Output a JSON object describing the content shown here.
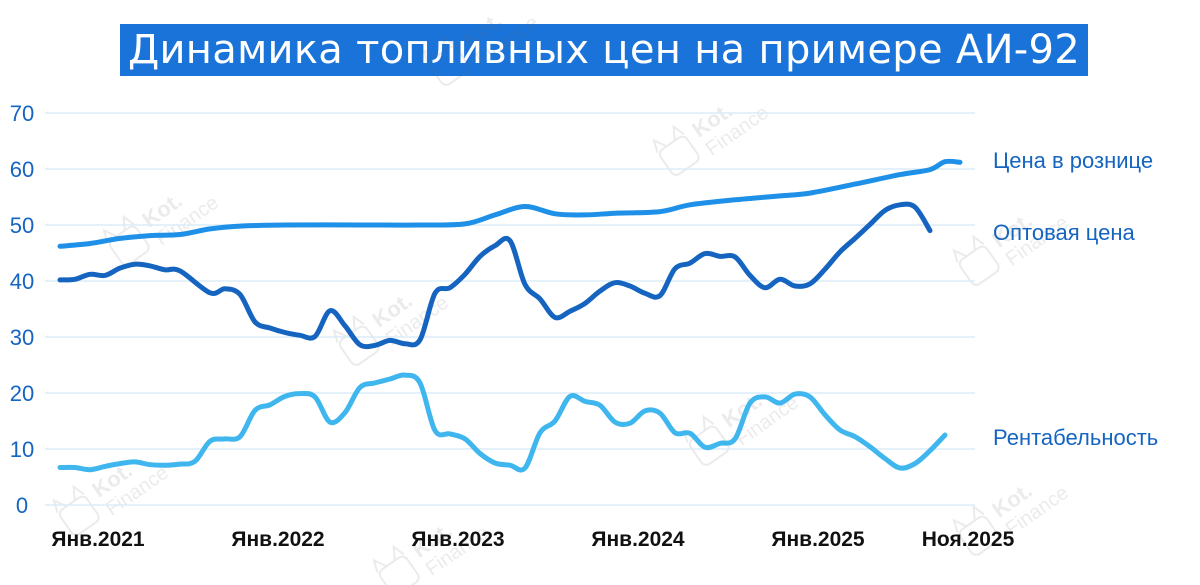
{
  "title": "Динамика топливных цен на примере АИ-92",
  "watermark": {
    "text_top": "Kot.",
    "text_bottom": "Finance",
    "icon": "cat-icon"
  },
  "colors": {
    "title_bg": "#1a73d9",
    "retail": "#1e90e8",
    "wholesale": "#1565c0",
    "margin": "#3fb6ee",
    "grid": "#dcecf8",
    "tick": "#1565c0"
  },
  "chart_data": {
    "type": "line",
    "title": "Динамика топливных цен на примере АИ-92",
    "xlabel": "",
    "ylabel": "",
    "ylim": [
      0,
      70
    ],
    "yticks": [
      0,
      10,
      20,
      30,
      40,
      50,
      60,
      70
    ],
    "xtick_labels": [
      "Янв.2021",
      "Янв.2022",
      "Янв.2023",
      "Янв.2024",
      "Янв.2025",
      "Ноя.2025"
    ],
    "xtick_months": [
      0,
      12,
      24,
      36,
      48,
      58
    ],
    "grid": true,
    "legend": "labels at right end of lines",
    "series": [
      {
        "name": "Цена в рознице",
        "values": [
          [
            0,
            46.2
          ],
          [
            2,
            46.7
          ],
          [
            4,
            47.6
          ],
          [
            6,
            48.1
          ],
          [
            8,
            48.3
          ],
          [
            10,
            49.3
          ],
          [
            12,
            49.8
          ],
          [
            15,
            50.0
          ],
          [
            20,
            50.0
          ],
          [
            24,
            50.0
          ],
          [
            27,
            50.2
          ],
          [
            29,
            51.8
          ],
          [
            31,
            53.3
          ],
          [
            33,
            52.0
          ],
          [
            35,
            51.8
          ],
          [
            37,
            52.1
          ],
          [
            40,
            52.4
          ],
          [
            42,
            53.6
          ],
          [
            45,
            54.5
          ],
          [
            48,
            55.2
          ],
          [
            50,
            55.7
          ],
          [
            53,
            57.3
          ],
          [
            56,
            59.0
          ],
          [
            58,
            59.9
          ],
          [
            59,
            61.3
          ],
          [
            60,
            61.2
          ]
        ]
      },
      {
        "name": "Оптовая цена",
        "values": [
          [
            0,
            40.2
          ],
          [
            1,
            40.3
          ],
          [
            2,
            41.2
          ],
          [
            3,
            41.0
          ],
          [
            4,
            42.3
          ],
          [
            5,
            43.0
          ],
          [
            6,
            42.7
          ],
          [
            7,
            42.0
          ],
          [
            8,
            41.8
          ],
          [
            10,
            37.9
          ],
          [
            11,
            38.6
          ],
          [
            12,
            37.6
          ],
          [
            13,
            32.7
          ],
          [
            14,
            31.6
          ],
          [
            15,
            30.8
          ],
          [
            16,
            30.3
          ],
          [
            17,
            30.1
          ],
          [
            18,
            34.7
          ],
          [
            19,
            32.0
          ],
          [
            20,
            28.6
          ],
          [
            21,
            28.5
          ],
          [
            22,
            29.4
          ],
          [
            23,
            28.8
          ],
          [
            24,
            29.5
          ],
          [
            25,
            37.8
          ],
          [
            26,
            38.8
          ],
          [
            27,
            41.2
          ],
          [
            28,
            44.4
          ],
          [
            29,
            46.3
          ],
          [
            30,
            47.2
          ],
          [
            31,
            39.4
          ],
          [
            32,
            36.8
          ],
          [
            33,
            33.5
          ],
          [
            34,
            34.6
          ],
          [
            35,
            36.0
          ],
          [
            36,
            38.2
          ],
          [
            37,
            39.7
          ],
          [
            38,
            39.1
          ],
          [
            39,
            37.8
          ],
          [
            40,
            37.4
          ],
          [
            41,
            42.2
          ],
          [
            42,
            43.2
          ],
          [
            43,
            44.9
          ],
          [
            44,
            44.4
          ],
          [
            45,
            44.3
          ],
          [
            46,
            41.0
          ],
          [
            47,
            38.8
          ],
          [
            48,
            40.3
          ],
          [
            49,
            39.1
          ],
          [
            50,
            39.5
          ],
          [
            51,
            42.1
          ],
          [
            52,
            45.2
          ],
          [
            53,
            47.6
          ],
          [
            54,
            50.1
          ],
          [
            55,
            52.6
          ],
          [
            56,
            53.6
          ],
          [
            57,
            53.2
          ],
          [
            58,
            49.0
          ]
        ]
      },
      {
        "name": "Рентабельность",
        "values": [
          [
            0,
            6.7
          ],
          [
            1,
            6.7
          ],
          [
            2,
            6.3
          ],
          [
            3,
            6.9
          ],
          [
            4,
            7.4
          ],
          [
            5,
            7.7
          ],
          [
            6,
            7.2
          ],
          [
            7,
            7.1
          ],
          [
            8,
            7.3
          ],
          [
            9,
            7.8
          ],
          [
            10,
            11.4
          ],
          [
            11,
            11.8
          ],
          [
            12,
            12.2
          ],
          [
            13,
            16.9
          ],
          [
            14,
            17.9
          ],
          [
            15,
            19.4
          ],
          [
            16,
            19.9
          ],
          [
            17,
            19.3
          ],
          [
            18,
            14.8
          ],
          [
            19,
            16.5
          ],
          [
            20,
            21.0
          ],
          [
            21,
            21.8
          ],
          [
            22,
            22.5
          ],
          [
            23,
            23.2
          ],
          [
            24,
            21.8
          ],
          [
            25,
            13.3
          ],
          [
            26,
            12.7
          ],
          [
            27,
            11.8
          ],
          [
            28,
            9.2
          ],
          [
            29,
            7.5
          ],
          [
            30,
            7.1
          ],
          [
            31,
            6.6
          ],
          [
            32,
            12.9
          ],
          [
            33,
            15.0
          ],
          [
            34,
            19.4
          ],
          [
            35,
            18.5
          ],
          [
            36,
            17.8
          ],
          [
            37,
            14.8
          ],
          [
            38,
            14.6
          ],
          [
            39,
            16.8
          ],
          [
            40,
            16.4
          ],
          [
            41,
            12.9
          ],
          [
            42,
            12.8
          ],
          [
            43,
            10.3
          ],
          [
            44,
            11.0
          ],
          [
            45,
            11.8
          ],
          [
            46,
            18.2
          ],
          [
            47,
            19.3
          ],
          [
            48,
            18.2
          ],
          [
            49,
            19.8
          ],
          [
            50,
            19.3
          ],
          [
            51,
            16.1
          ],
          [
            52,
            13.4
          ],
          [
            53,
            12.2
          ],
          [
            54,
            10.4
          ],
          [
            55,
            8.3
          ],
          [
            56,
            6.6
          ],
          [
            57,
            7.4
          ],
          [
            58,
            9.7
          ],
          [
            59,
            12.5
          ]
        ]
      }
    ]
  }
}
